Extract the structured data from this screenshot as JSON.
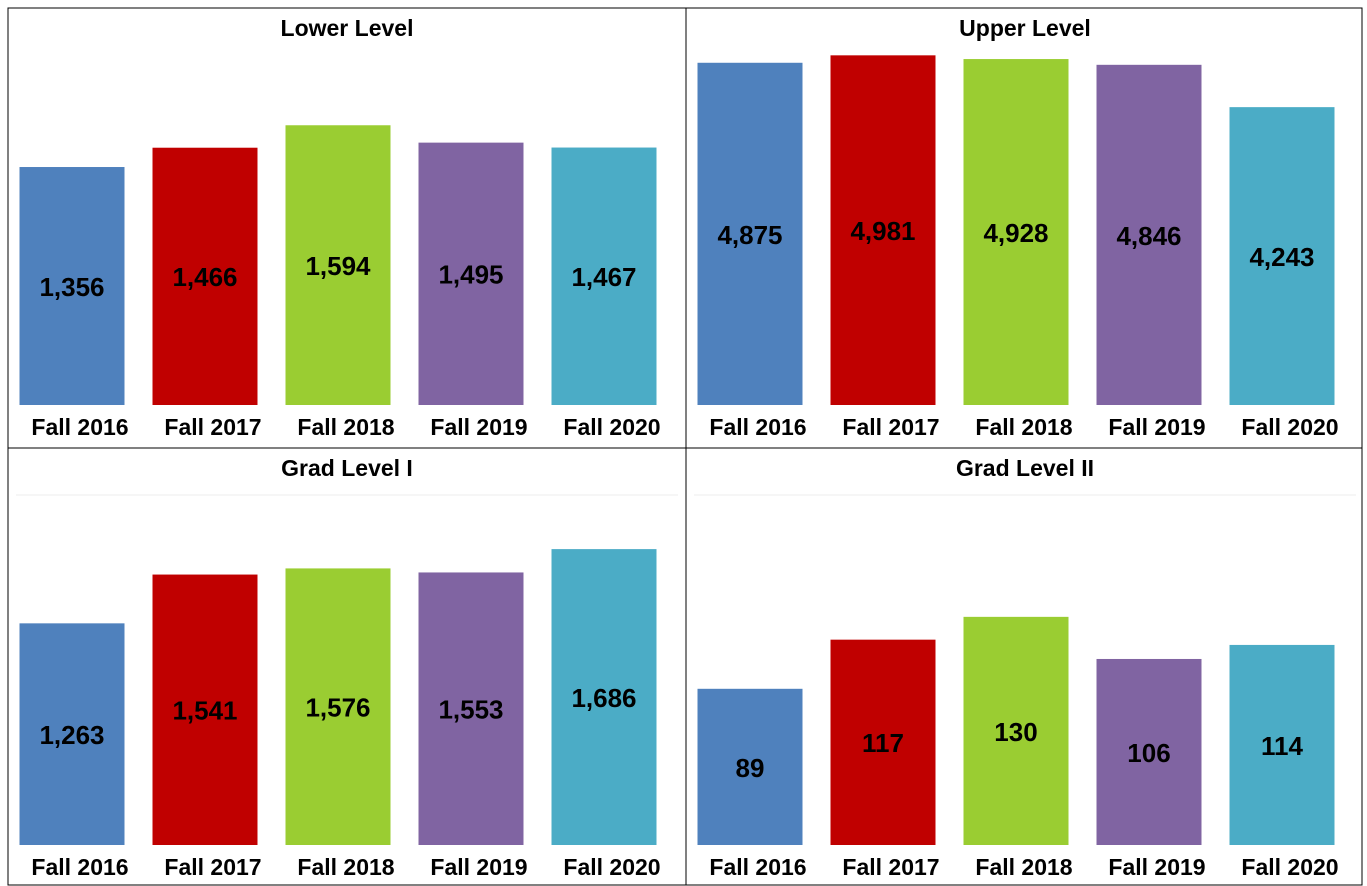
{
  "chart_data": [
    {
      "type": "bar",
      "title": "Lower Level",
      "categories": [
        "Fall 2016",
        "Fall 2017",
        "Fall 2018",
        "Fall 2019",
        "Fall 2020"
      ],
      "values": [
        1356,
        1466,
        1594,
        1495,
        1467
      ],
      "value_labels": [
        "1,356",
        "1,466",
        "1,594",
        "1,495",
        "1,467"
      ],
      "colors": [
        "#4f81bd",
        "#c00000",
        "#9acd32",
        "#8064a2",
        "#4bacc6"
      ],
      "ylim": [
        0,
        2000
      ]
    },
    {
      "type": "bar",
      "title": "Upper Level",
      "categories": [
        "Fall 2016",
        "Fall 2017",
        "Fall 2018",
        "Fall 2019",
        "Fall 2020"
      ],
      "values": [
        4875,
        4981,
        4928,
        4846,
        4243
      ],
      "value_labels": [
        "4,875",
        "4,981",
        "4,928",
        "4,846",
        "4,243"
      ],
      "colors": [
        "#4f81bd",
        "#c00000",
        "#9acd32",
        "#8064a2",
        "#4bacc6"
      ],
      "ylim": [
        0,
        5000
      ]
    },
    {
      "type": "bar",
      "title": "Grad Level I",
      "categories": [
        "Fall 2016",
        "Fall 2017",
        "Fall 2018",
        "Fall 2019",
        "Fall 2020"
      ],
      "values": [
        1263,
        1541,
        1576,
        1553,
        1686
      ],
      "value_labels": [
        "1,263",
        "1,541",
        "1,576",
        "1,553",
        "1,686"
      ],
      "colors": [
        "#4f81bd",
        "#c00000",
        "#9acd32",
        "#8064a2",
        "#4bacc6"
      ],
      "ylim": [
        0,
        2000
      ]
    },
    {
      "type": "bar",
      "title": "Grad Level II",
      "categories": [
        "Fall 2016",
        "Fall 2017",
        "Fall 2018",
        "Fall 2019",
        "Fall 2020"
      ],
      "values": [
        89,
        117,
        130,
        106,
        114
      ],
      "colors": [
        "#4f81bd",
        "#c00000",
        "#9acd32",
        "#8064a2",
        "#4bacc6"
      ],
      "ylim": [
        0,
        200
      ]
    }
  ]
}
